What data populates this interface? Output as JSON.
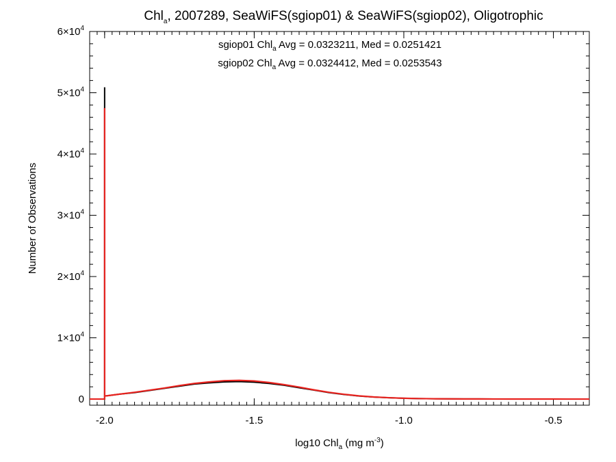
{
  "chart_data": {
    "type": "line",
    "title_parts": {
      "main": "Chl",
      "sub": "a",
      "rest": ", 2007289, SeaWiFS(sgiop01) & SeaWiFS(sgiop02), Oligotrophic"
    },
    "xlabel_parts": {
      "main": "log10 Chl",
      "sub": "a",
      "rest": " (mg m",
      "sup": "-3",
      "end": ")"
    },
    "ylabel": "Number of Observations",
    "xlim": [
      -2.05,
      -0.38
    ],
    "ylim": [
      -1000,
      60000
    ],
    "x_ticks": [
      {
        "value": -2.0,
        "label": "-2.0"
      },
      {
        "value": -1.5,
        "label": "-1.5"
      },
      {
        "value": -1.0,
        "label": "-1.0"
      },
      {
        "value": -0.5,
        "label": "-0.5"
      }
    ],
    "y_ticks": [
      {
        "value": 0,
        "label": "0",
        "exp": ""
      },
      {
        "value": 10000,
        "label": "1×10",
        "exp": "4"
      },
      {
        "value": 20000,
        "label": "2×10",
        "exp": "4"
      },
      {
        "value": 30000,
        "label": "3×10",
        "exp": "4"
      },
      {
        "value": 40000,
        "label": "4×10",
        "exp": "4"
      },
      {
        "value": 50000,
        "label": "5×10",
        "exp": "4"
      },
      {
        "value": 60000,
        "label": "6×10",
        "exp": "4"
      }
    ],
    "annotations": [
      {
        "series": "sgiop01",
        "pre": "sgiop01 Chl",
        "sub": "a",
        "post": " Avg = 0.0323211, Med = 0.0251421",
        "color": "#000000"
      },
      {
        "series": "sgiop02",
        "pre": "sgiop02 Chl",
        "sub": "a",
        "post": " Avg = 0.0324412, Med = 0.0253543",
        "color": "#e8231f"
      }
    ],
    "series": [
      {
        "name": "sgiop01",
        "color": "#000000",
        "x": [
          -2.05,
          -2.0,
          -2.0,
          -2.0,
          -1.99,
          -1.95,
          -1.9,
          -1.85,
          -1.8,
          -1.75,
          -1.7,
          -1.65,
          -1.6,
          -1.55,
          -1.5,
          -1.45,
          -1.4,
          -1.35,
          -1.3,
          -1.25,
          -1.2,
          -1.15,
          -1.1,
          -1.05,
          -1.0,
          -0.95,
          -0.9,
          -0.85,
          -0.8,
          -0.75,
          -0.7,
          -0.65,
          -0.6,
          -0.55,
          -0.5,
          -0.45,
          -0.4,
          -0.38
        ],
        "y": [
          0,
          0,
          50900,
          500,
          550,
          800,
          1050,
          1400,
          1750,
          2100,
          2450,
          2650,
          2800,
          2850,
          2750,
          2550,
          2250,
          1850,
          1450,
          1050,
          750,
          500,
          330,
          210,
          130,
          80,
          50,
          30,
          20,
          15,
          10,
          6,
          5,
          3,
          2,
          1,
          0,
          0
        ]
      },
      {
        "name": "sgiop02",
        "color": "#e8231f",
        "x": [
          -2.05,
          -2.0,
          -2.0,
          -2.0,
          -1.99,
          -1.95,
          -1.9,
          -1.85,
          -1.8,
          -1.75,
          -1.7,
          -1.65,
          -1.6,
          -1.55,
          -1.5,
          -1.45,
          -1.4,
          -1.35,
          -1.3,
          -1.25,
          -1.2,
          -1.15,
          -1.1,
          -1.05,
          -1.0,
          -0.95,
          -0.9,
          -0.85,
          -0.8,
          -0.75,
          -0.7,
          -0.65,
          -0.6,
          -0.55,
          -0.5,
          -0.45,
          -0.4,
          -0.38
        ],
        "y": [
          0,
          0,
          47500,
          500,
          550,
          800,
          1100,
          1450,
          1800,
          2200,
          2550,
          2800,
          3000,
          3050,
          2950,
          2700,
          2350,
          1950,
          1500,
          1100,
          780,
          520,
          340,
          220,
          135,
          85,
          52,
          32,
          21,
          15,
          10,
          6,
          5,
          3,
          2,
          1,
          0,
          0
        ]
      }
    ]
  }
}
